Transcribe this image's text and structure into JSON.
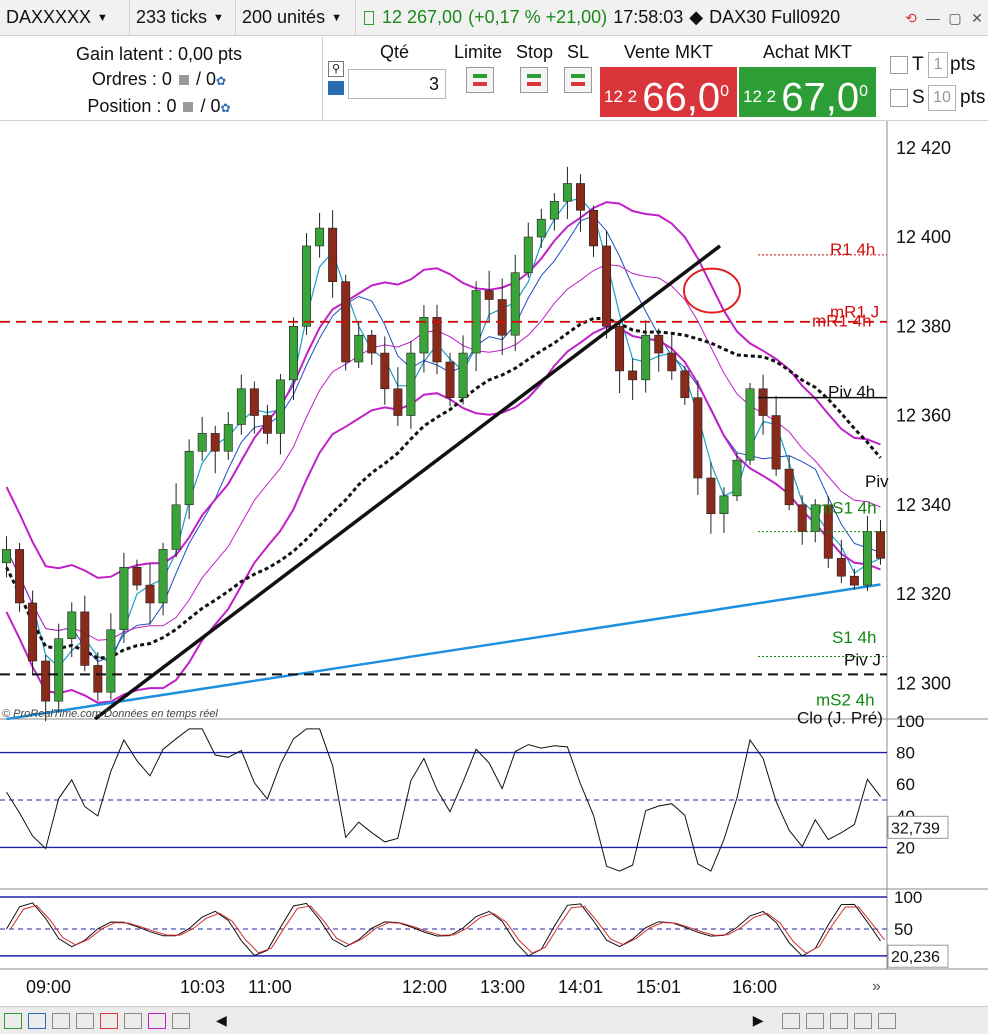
{
  "top": {
    "instrument": "DAXXXXX",
    "ticks": "233 ticks",
    "units": "200 unités",
    "price": "12 267,00",
    "change": "(+0,17 % +21,00)",
    "time": "17:58:03",
    "contract": "DAX30 Full0920"
  },
  "status": {
    "gain": "Gain latent : 0,00 pts",
    "orders_prefix": "Ordres : 0",
    "orders_suffix": "/ 0",
    "position_prefix": "Position : 0",
    "position_suffix": "/ 0"
  },
  "order": {
    "qty_label": "Qté",
    "qty_value": "3",
    "limit_label": "Limite",
    "stop_label": "Stop",
    "sl_label": "SL",
    "sell_label": "Vente MKT",
    "sell_prefix": "12 2",
    "sell_big": "66,0",
    "sell_sup": "0",
    "buy_label": "Achat MKT",
    "buy_prefix": "12 2",
    "buy_big": "67,0",
    "buy_sup": "0",
    "t_label": "T",
    "t_value": "1",
    "t_unit": "pts",
    "s_label": "S",
    "s_value": "10",
    "s_unit": "pts"
  },
  "price_axis": [
    "12 420",
    "12 400",
    "12 380",
    "12 360",
    "12 340",
    "12 320",
    "12 300"
  ],
  "levels": {
    "r1": "R1 4h",
    "mr1": "mR1 4h",
    "mr1j": "mR1 J",
    "piv4h": "Piv 4h",
    "piv": "Piv",
    "ms1": "mS1 4h",
    "s1": "S1 4h",
    "pivj": "Piv J",
    "ms2": "mS2 4h",
    "clo": "Clo (J. Pré)"
  },
  "credit": "© ProRealTime.com  Données en temps réel",
  "rsi": {
    "ticks": [
      "100",
      "80",
      "60",
      "40",
      "20"
    ],
    "value": "32,739"
  },
  "stoch": {
    "ticks": [
      "100",
      "50",
      "0"
    ],
    "value": "20,236"
  },
  "time_axis": [
    "09:00",
    "10:03",
    "11:00",
    "12:00",
    "13:00",
    "14:01",
    "15:01",
    "16:00"
  ],
  "colors": {
    "sell": "#d9353a",
    "buy": "#2c9e35",
    "bull": "#3aa33a",
    "bear": "#8a2a1a",
    "purple": "#c020c8",
    "blue_ma": "#1e90e0",
    "resist": "#d01010",
    "support": "#118811"
  },
  "chart_data": {
    "type": "candlestick",
    "ylim": [
      12292,
      12426
    ],
    "yticks": [
      12420,
      12400,
      12380,
      12360,
      12340,
      12320,
      12300
    ],
    "close_path": [
      12330,
      12318,
      12305,
      12296,
      12310,
      12316,
      12304,
      12298,
      12312,
      12326,
      12322,
      12318,
      12330,
      12340,
      12352,
      12356,
      12352,
      12358,
      12366,
      12360,
      12356,
      12368,
      12380,
      12398,
      12402,
      12390,
      12372,
      12378,
      12374,
      12366,
      12360,
      12374,
      12382,
      12372,
      12364,
      12374,
      12388,
      12386,
      12378,
      12392,
      12400,
      12404,
      12408,
      12412,
      12406,
      12398,
      12380,
      12370,
      12368,
      12378,
      12374,
      12370,
      12364,
      12346,
      12338,
      12342,
      12350,
      12366,
      12360,
      12348,
      12340,
      12334,
      12340,
      12328,
      12324,
      12322,
      12334,
      12328
    ],
    "levels": [
      {
        "name": "R1 4h",
        "value": 12396
      },
      {
        "name": "mR1 4h",
        "value": 12380
      },
      {
        "name": "Piv 4h",
        "value": 12364
      },
      {
        "name": "mS1 4h",
        "value": 12334
      },
      {
        "name": "S1 4h",
        "value": 12306
      },
      {
        "name": "Piv J",
        "value": 12302
      },
      {
        "name": "mS2 4h",
        "value": 12293
      }
    ],
    "rsi_last": 32.739,
    "stoch_last": 20.236
  }
}
